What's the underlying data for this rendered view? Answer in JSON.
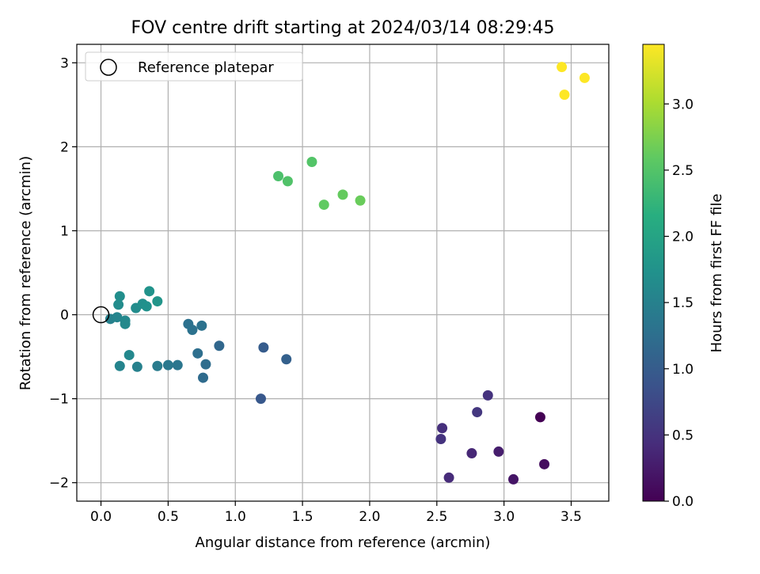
{
  "chart_data": {
    "type": "scatter",
    "title": "FOV centre drift starting at 2024/03/14 08:29:45",
    "xlabel": "Angular distance from reference (arcmin)",
    "ylabel": "Rotation from reference (arcmin)",
    "xlim": [
      -0.18,
      3.78
    ],
    "ylim": [
      -2.22,
      3.22
    ],
    "xticks": [
      0.0,
      0.5,
      1.0,
      1.5,
      2.0,
      2.5,
      3.0,
      3.5
    ],
    "xtick_labels": [
      "0.0",
      "0.5",
      "1.0",
      "1.5",
      "2.0",
      "2.5",
      "3.0",
      "3.5"
    ],
    "yticks": [
      -2,
      -1,
      0,
      1,
      2,
      3
    ],
    "ytick_labels": [
      "−2",
      "−1",
      "0",
      "1",
      "2",
      "3"
    ],
    "grid": true,
    "legend": {
      "placement": "upper-left",
      "entries": [
        "Reference platepar"
      ]
    },
    "reference_point": {
      "x": 0.0,
      "y": 0.0
    },
    "colorbar": {
      "label": "Hours from first FF file",
      "colormap": "viridis",
      "range": [
        0.0,
        3.45
      ],
      "ticks": [
        0.0,
        0.5,
        1.0,
        1.5,
        2.0,
        2.5,
        3.0
      ],
      "tick_labels": [
        "0.0",
        "0.5",
        "1.0",
        "1.5",
        "2.0",
        "2.5",
        "3.0"
      ]
    },
    "points": [
      {
        "x": 3.27,
        "y": -1.22,
        "c": 0.0
      },
      {
        "x": 3.3,
        "y": -1.78,
        "c": 0.12
      },
      {
        "x": 3.07,
        "y": -1.96,
        "c": 0.2
      },
      {
        "x": 2.96,
        "y": -1.63,
        "c": 0.28
      },
      {
        "x": 2.76,
        "y": -1.65,
        "c": 0.38
      },
      {
        "x": 2.59,
        "y": -1.94,
        "c": 0.42
      },
      {
        "x": 2.53,
        "y": -1.48,
        "c": 0.5
      },
      {
        "x": 2.54,
        "y": -1.35,
        "c": 0.45
      },
      {
        "x": 2.8,
        "y": -1.16,
        "c": 0.55
      },
      {
        "x": 2.88,
        "y": -0.96,
        "c": 0.5
      },
      {
        "x": 1.19,
        "y": -1.0,
        "c": 0.95
      },
      {
        "x": 1.21,
        "y": -0.39,
        "c": 1.0
      },
      {
        "x": 1.38,
        "y": -0.53,
        "c": 1.05
      },
      {
        "x": 0.88,
        "y": -0.37,
        "c": 1.15
      },
      {
        "x": 0.76,
        "y": -0.75,
        "c": 1.2
      },
      {
        "x": 0.78,
        "y": -0.59,
        "c": 1.22
      },
      {
        "x": 0.72,
        "y": -0.46,
        "c": 1.25
      },
      {
        "x": 0.65,
        "y": -0.11,
        "c": 1.28
      },
      {
        "x": 0.68,
        "y": -0.18,
        "c": 1.3
      },
      {
        "x": 0.75,
        "y": -0.13,
        "c": 1.3
      },
      {
        "x": 0.57,
        "y": -0.6,
        "c": 1.35
      },
      {
        "x": 0.5,
        "y": -0.6,
        "c": 1.38
      },
      {
        "x": 0.42,
        "y": -0.61,
        "c": 1.42
      },
      {
        "x": 0.27,
        "y": -0.62,
        "c": 1.5
      },
      {
        "x": 0.14,
        "y": -0.61,
        "c": 1.55
      },
      {
        "x": 0.21,
        "y": -0.48,
        "c": 1.6
      },
      {
        "x": 0.07,
        "y": -0.05,
        "c": 1.5
      },
      {
        "x": 0.12,
        "y": -0.03,
        "c": 1.55
      },
      {
        "x": 0.18,
        "y": -0.07,
        "c": 1.6
      },
      {
        "x": 0.18,
        "y": -0.11,
        "c": 1.62
      },
      {
        "x": 0.13,
        "y": 0.12,
        "c": 1.65
      },
      {
        "x": 0.14,
        "y": 0.22,
        "c": 1.68
      },
      {
        "x": 0.26,
        "y": 0.08,
        "c": 1.65
      },
      {
        "x": 0.31,
        "y": 0.13,
        "c": 1.7
      },
      {
        "x": 0.34,
        "y": 0.1,
        "c": 1.72
      },
      {
        "x": 0.36,
        "y": 0.28,
        "c": 1.75
      },
      {
        "x": 0.42,
        "y": 0.16,
        "c": 1.78
      },
      {
        "x": 1.32,
        "y": 1.65,
        "c": 2.45
      },
      {
        "x": 1.39,
        "y": 1.59,
        "c": 2.48
      },
      {
        "x": 1.57,
        "y": 1.82,
        "c": 2.5
      },
      {
        "x": 1.66,
        "y": 1.31,
        "c": 2.6
      },
      {
        "x": 1.8,
        "y": 1.43,
        "c": 2.62
      },
      {
        "x": 1.93,
        "y": 1.36,
        "c": 2.65
      },
      {
        "x": 3.43,
        "y": 2.95,
        "c": 3.45
      },
      {
        "x": 3.45,
        "y": 2.62,
        "c": 3.45
      },
      {
        "x": 3.6,
        "y": 2.82,
        "c": 3.45
      }
    ]
  }
}
